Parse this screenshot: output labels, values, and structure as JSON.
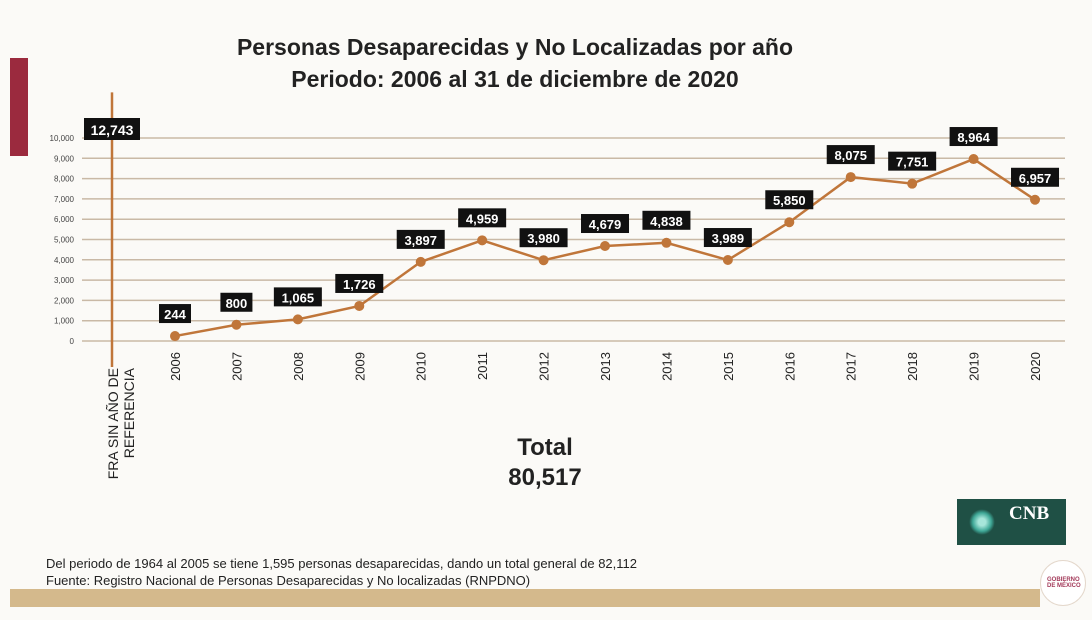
{
  "title_line1": "Personas Desaparecidas y No Localizadas por año",
  "title_line2": "Periodo: 2006 al 31 de diciembre de 2020",
  "chart_data": {
    "type": "line",
    "title": "Personas Desaparecidas y No Localizadas por año",
    "subtitle": "Periodo: 2006 al 31 de diciembre de 2020",
    "categories": [
      "2006",
      "2007",
      "2008",
      "2009",
      "2010",
      "2011",
      "2012",
      "2013",
      "2014",
      "2015",
      "2016",
      "2017",
      "2018",
      "2019",
      "2020"
    ],
    "values": [
      244,
      800,
      1065,
      1726,
      3897,
      4959,
      3980,
      4679,
      4838,
      3989,
      5850,
      8075,
      7751,
      8964,
      6957
    ],
    "data_labels": [
      "244",
      "800",
      "1,065",
      "1,726",
      "3,897",
      "4,959",
      "3,980",
      "4,679",
      "4,838",
      "3,989",
      "5,850",
      "8,075",
      "7,751",
      "8,964",
      "6,957"
    ],
    "reference_bar": {
      "label": "CIFRA SIN AÑO DE REFERENCIA",
      "label_visible_line1": "FRA SIN AÑO DE",
      "label_visible_line2": "REFERENCIA",
      "value": 12743,
      "data_label": "12,743"
    },
    "yticks": [
      "0",
      "1,000",
      "2,000",
      "3,000",
      "4,000",
      "5,000",
      "6,000",
      "7,000",
      "8,000",
      "9,000",
      "10,000"
    ],
    "ylim": [
      0,
      10000
    ],
    "grid": true,
    "line_color": "#c0763a",
    "grid_color": "#c9b9a6"
  },
  "total_label": "Total",
  "total_value": "80,517",
  "note": "Del periodo de 1964 al 2005 se tiene 1,595 personas desaparecidas, dando un total general de 82,112",
  "source": "Fuente: Registro Nacional de Personas Desaparecidas y No localizadas (RNPDNO)",
  "logo_text": "CNB",
  "seal_text": "GOBIERNO DE MÉXICO"
}
